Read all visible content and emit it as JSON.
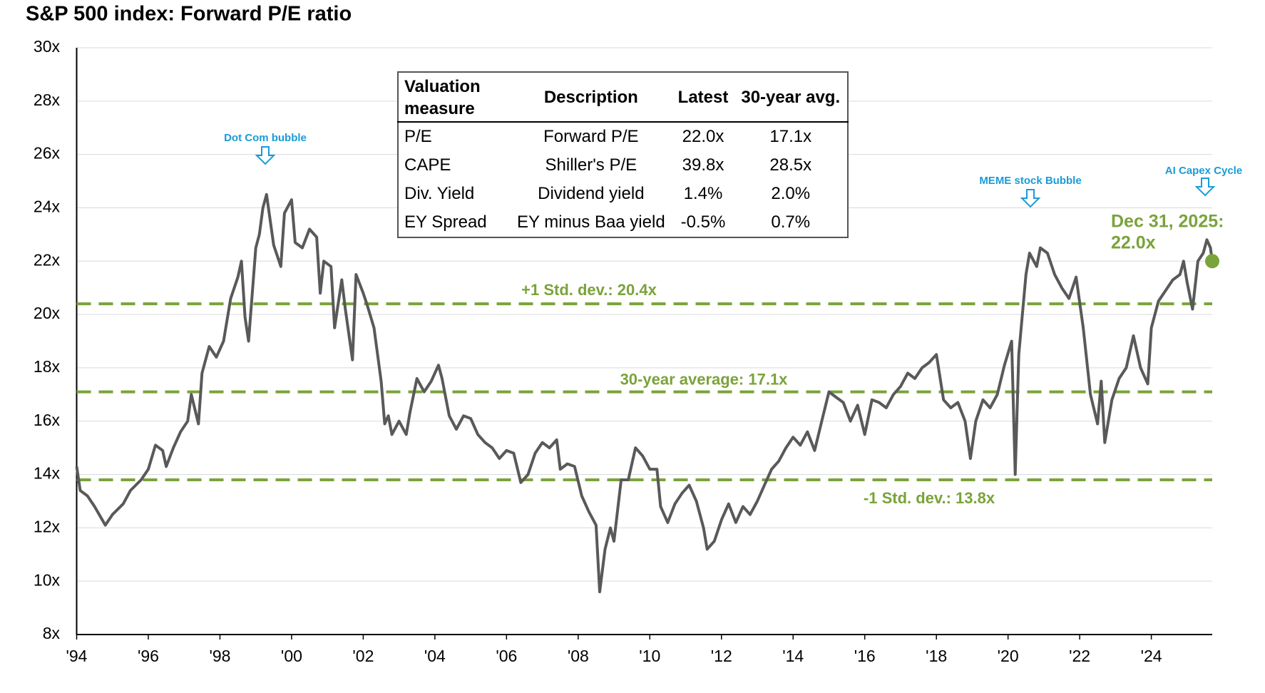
{
  "chart_data": {
    "type": "line",
    "title": "S&P 500 index: Forward P/E ratio",
    "series": [
      {
        "name": "Forward P/E",
        "color": "#595959",
        "x": [
          1994.0,
          1994.1,
          1994.3,
          1994.5,
          1994.8,
          1995.0,
          1995.3,
          1995.5,
          1995.8,
          1996.0,
          1996.2,
          1996.4,
          1996.5,
          1996.7,
          1996.9,
          1997.1,
          1997.2,
          1997.4,
          1997.5,
          1997.7,
          1997.9,
          1998.1,
          1998.3,
          1998.5,
          1998.6,
          1998.7,
          1998.8,
          1999.0,
          1999.1,
          1999.2,
          1999.3,
          1999.5,
          1999.7,
          1999.8,
          2000.0,
          2000.1,
          2000.3,
          2000.5,
          2000.7,
          2000.8,
          2000.9,
          2001.1,
          2001.2,
          2001.4,
          2001.5,
          2001.7,
          2001.8,
          2002.0,
          2002.1,
          2002.3,
          2002.5,
          2002.6,
          2002.7,
          2002.8,
          2003.0,
          2003.2,
          2003.3,
          2003.5,
          2003.7,
          2003.9,
          2004.1,
          2004.2,
          2004.4,
          2004.6,
          2004.8,
          2005.0,
          2005.2,
          2005.4,
          2005.6,
          2005.8,
          2006.0,
          2006.2,
          2006.4,
          2006.6,
          2006.8,
          2007.0,
          2007.2,
          2007.4,
          2007.5,
          2007.7,
          2007.9,
          2008.1,
          2008.3,
          2008.5,
          2008.6,
          2008.75,
          2008.9,
          2009.0,
          2009.2,
          2009.4,
          2009.6,
          2009.8,
          2010.0,
          2010.2,
          2010.3,
          2010.5,
          2010.7,
          2010.9,
          2011.1,
          2011.3,
          2011.5,
          2011.6,
          2011.8,
          2012.0,
          2012.2,
          2012.4,
          2012.6,
          2012.8,
          2013.0,
          2013.2,
          2013.4,
          2013.6,
          2013.8,
          2014.0,
          2014.2,
          2014.4,
          2014.6,
          2014.8,
          2015.0,
          2015.2,
          2015.4,
          2015.6,
          2015.8,
          2016.0,
          2016.2,
          2016.4,
          2016.6,
          2016.8,
          2017.0,
          2017.2,
          2017.4,
          2017.6,
          2017.8,
          2018.0,
          2018.2,
          2018.4,
          2018.6,
          2018.8,
          2018.95,
          2019.1,
          2019.3,
          2019.5,
          2019.7,
          2019.9,
          2020.1,
          2020.2,
          2020.3,
          2020.5,
          2020.6,
          2020.8,
          2020.9,
          2021.1,
          2021.3,
          2021.5,
          2021.7,
          2021.9,
          2022.1,
          2022.3,
          2022.5,
          2022.6,
          2022.7,
          2022.9,
          2023.1,
          2023.3,
          2023.5,
          2023.7,
          2023.9,
          2024.0,
          2024.2,
          2024.4,
          2024.6,
          2024.8,
          2024.9,
          2025.0,
          2025.15,
          2025.3,
          2025.45,
          2025.55,
          2025.65,
          2025.7
        ],
        "values": [
          14.3,
          13.4,
          13.2,
          12.8,
          12.1,
          12.5,
          12.9,
          13.4,
          13.8,
          14.2,
          15.1,
          14.9,
          14.3,
          15.0,
          15.6,
          16.0,
          17.0,
          15.9,
          17.8,
          18.8,
          18.4,
          19.0,
          20.6,
          21.4,
          22.0,
          19.9,
          19.0,
          22.5,
          23.0,
          24.0,
          24.5,
          22.6,
          21.8,
          23.8,
          24.3,
          22.7,
          22.5,
          23.2,
          22.9,
          20.8,
          22.0,
          21.8,
          19.5,
          21.3,
          20.2,
          18.3,
          21.5,
          20.8,
          20.4,
          19.5,
          17.5,
          15.9,
          16.2,
          15.5,
          16.0,
          15.5,
          16.3,
          17.6,
          17.1,
          17.5,
          18.1,
          17.6,
          16.2,
          15.7,
          16.2,
          16.1,
          15.5,
          15.2,
          15.0,
          14.6,
          14.9,
          14.8,
          13.7,
          14.0,
          14.8,
          15.2,
          15.0,
          15.3,
          14.2,
          14.4,
          14.3,
          13.2,
          12.6,
          12.1,
          9.6,
          11.2,
          12.0,
          11.5,
          13.8,
          13.8,
          15.0,
          14.7,
          14.2,
          14.2,
          12.8,
          12.2,
          12.9,
          13.3,
          13.6,
          13.0,
          12.0,
          11.2,
          11.5,
          12.3,
          12.9,
          12.2,
          12.8,
          12.5,
          13.0,
          13.6,
          14.2,
          14.5,
          15.0,
          15.4,
          15.1,
          15.6,
          14.9,
          16.0,
          17.1,
          16.9,
          16.7,
          16.0,
          16.6,
          15.5,
          16.8,
          16.7,
          16.5,
          17.0,
          17.3,
          17.8,
          17.6,
          18.0,
          18.2,
          18.5,
          16.8,
          16.5,
          16.7,
          16.0,
          14.6,
          16.0,
          16.8,
          16.5,
          17.0,
          18.1,
          19.0,
          14.0,
          18.5,
          21.5,
          22.3,
          21.8,
          22.5,
          22.3,
          21.5,
          21.0,
          20.6,
          21.4,
          19.5,
          17.0,
          15.9,
          17.5,
          15.2,
          16.8,
          17.6,
          18.0,
          19.2,
          18.0,
          17.4,
          19.5,
          20.5,
          20.9,
          21.3,
          21.5,
          22.0,
          21.2,
          20.2,
          22.0,
          22.3,
          22.8,
          22.5,
          22.0
        ]
      }
    ],
    "xlim": [
      1994,
      2025.7
    ],
    "xticks": [
      {
        "value": 1994,
        "label": "'94"
      },
      {
        "value": 1996,
        "label": "'96"
      },
      {
        "value": 1998,
        "label": "'98"
      },
      {
        "value": 2000,
        "label": "'00"
      },
      {
        "value": 2002,
        "label": "'02"
      },
      {
        "value": 2004,
        "label": "'04"
      },
      {
        "value": 2006,
        "label": "'06"
      },
      {
        "value": 2008,
        "label": "'08"
      },
      {
        "value": 2010,
        "label": "'10"
      },
      {
        "value": 2012,
        "label": "'12"
      },
      {
        "value": 2014,
        "label": "'14"
      },
      {
        "value": 2016,
        "label": "'16"
      },
      {
        "value": 2018,
        "label": "'18"
      },
      {
        "value": 2020,
        "label": "'20"
      },
      {
        "value": 2022,
        "label": "'22"
      },
      {
        "value": 2024,
        "label": "'24"
      }
    ],
    "ylim": [
      8,
      30
    ],
    "yticks": [
      {
        "value": 8,
        "label": "8x"
      },
      {
        "value": 10,
        "label": "10x"
      },
      {
        "value": 12,
        "label": "12x"
      },
      {
        "value": 14,
        "label": "14x"
      },
      {
        "value": 16,
        "label": "16x"
      },
      {
        "value": 18,
        "label": "18x"
      },
      {
        "value": 20,
        "label": "20x"
      },
      {
        "value": 22,
        "label": "22x"
      },
      {
        "value": 24,
        "label": "24x"
      },
      {
        "value": 26,
        "label": "26x"
      },
      {
        "value": 28,
        "label": "28x"
      },
      {
        "value": 30,
        "label": "30x"
      }
    ],
    "grid": true,
    "reference_lines": [
      {
        "label": "+1 Std. dev.: 20.4x",
        "value": 20.4,
        "color": "#7aa33a"
      },
      {
        "label": "30-year average: 17.1x",
        "value": 17.1,
        "color": "#7aa33a"
      },
      {
        "label": "-1 Std. dev.: 13.8x",
        "value": 13.8,
        "color": "#7aa33a"
      }
    ],
    "annotations": [
      "Dot Com bubble",
      "MEME stock Bubble",
      "AI Capex Cycle"
    ],
    "end_annotation": {
      "date": "Dec 31, 2025:",
      "label": "22.0x",
      "color": "#7aa33a"
    },
    "table": {
      "headers": [
        "Valuation measure",
        "Description",
        "Latest",
        "30-year avg."
      ],
      "rows": [
        [
          "P/E",
          "Forward P/E",
          "22.0x",
          "17.1x"
        ],
        [
          "CAPE",
          "Shiller's P/E",
          "39.8x",
          "28.5x"
        ],
        [
          "Div. Yield",
          "Dividend yield",
          "1.4%",
          "2.0%"
        ],
        [
          "EY Spread",
          "EY minus Baa yield",
          "-0.5%",
          "0.7%"
        ]
      ]
    }
  }
}
